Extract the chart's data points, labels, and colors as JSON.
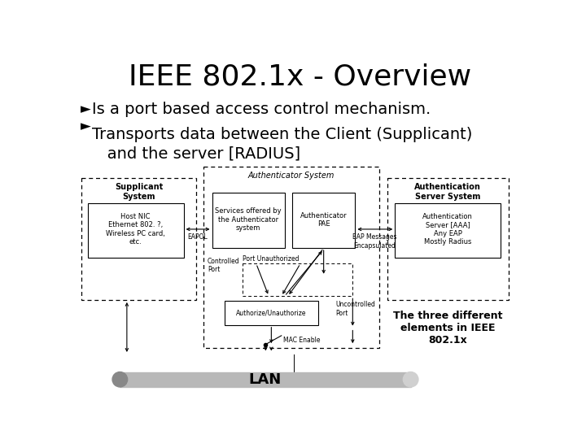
{
  "title": "IEEE 802.1x - Overview",
  "bullet1_arrow": "►",
  "bullet1_text": "Is a port based access control mechanism.",
  "bullet2_arrow": "►",
  "bullet2_text": "Transports data between the Client (Supplicant)\n   and the server [RADIUS]",
  "bg_color": "#ffffff",
  "title_fontsize": 26,
  "body_fontsize": 14,
  "diagram_note": "The three different\nelements in IEEE\n802.1x",
  "supp_label": "Supplicant\nSystem",
  "supp_inner": "Host NIC\nEthernet 802. ?,\nWireless PC card,\netc.",
  "auth_sys_label": "Authenticator System",
  "services_label": "Services offered by\nthe Authenticator\nsystem",
  "auth_pae_label": "Authenticator\nPAE",
  "controlled_port": "Controlled\nPort",
  "port_unauth": "Port Unauthorized",
  "auth_unauth": "Authorize/Unauthorize",
  "uncontrolled": "Uncontrolled\nPort",
  "mac_enable": "MAC Enable",
  "eapol": "EAPOL",
  "eap_msg": "EAP Messages\nEncapsulated",
  "auth_server_label": "Authentication\nServer System",
  "auth_server_inner": "Authentication\nServer [AAA]\nAny EAP\nMostly Radius",
  "lan_label": "LAN"
}
